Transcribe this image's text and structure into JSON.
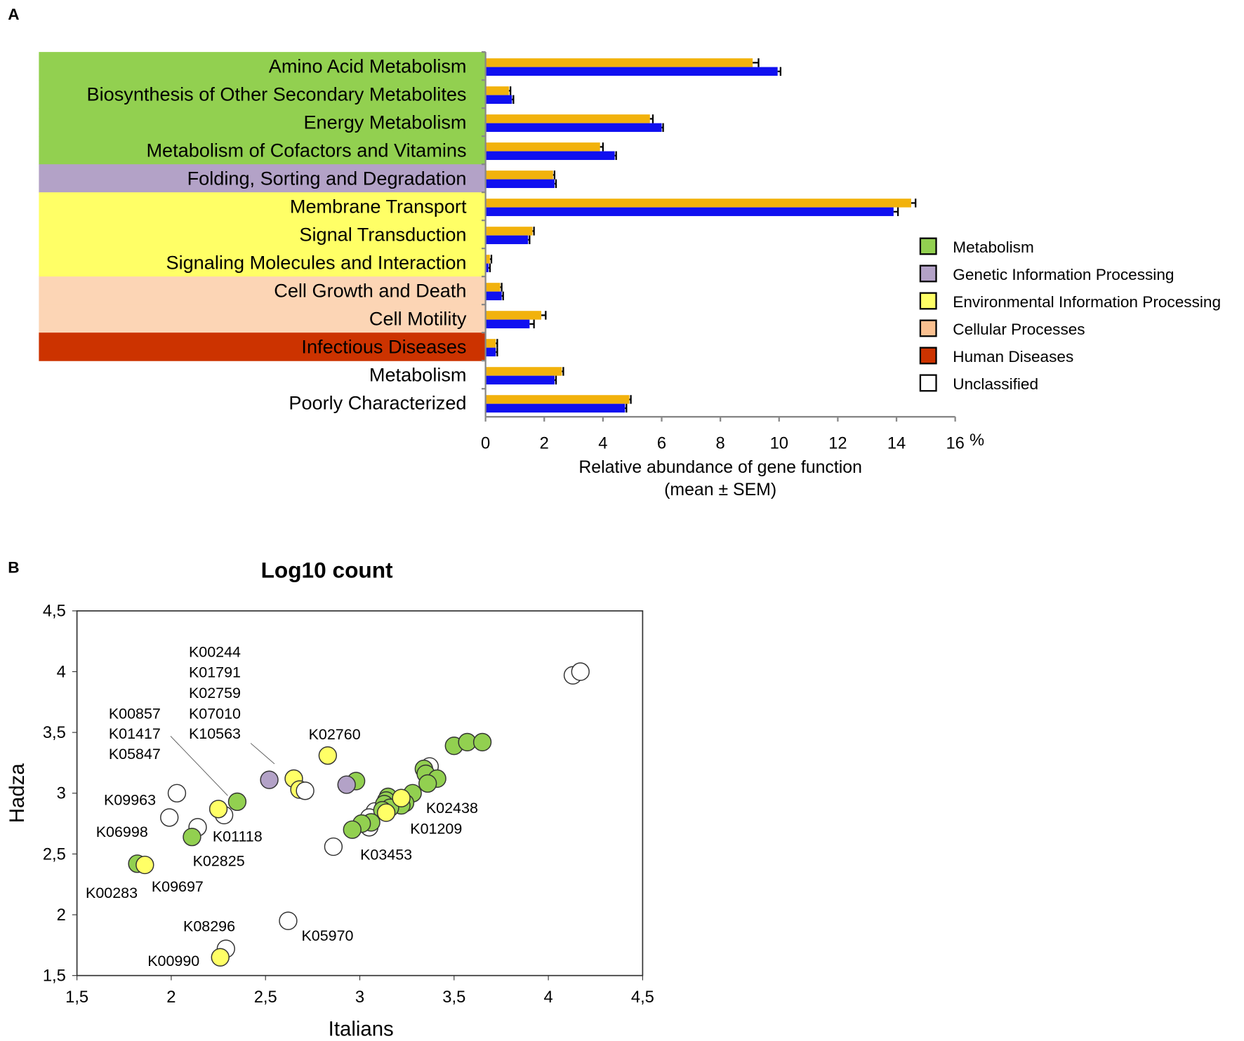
{
  "panel_labels": [
    "A",
    "B"
  ],
  "chart_data": [
    {
      "type": "bar",
      "orientation": "horizontal",
      "categories": [
        "Amino Acid Metabolism",
        "Biosynthesis of Other Secondary Metabolites",
        "Energy Metabolism",
        "Metabolism of Cofactors and Vitamins",
        "Folding, Sorting and Degradation",
        "Membrane Transport",
        "Signal Transduction",
        "Signaling Molecules and Interaction",
        "Cell Growth and Death",
        "Cell Motility",
        "Infectious Diseases",
        "Metabolism",
        "Poorly Characterized"
      ],
      "category_groups": [
        "Metabolism",
        "Metabolism",
        "Metabolism",
        "Metabolism",
        "Genetic Information Processing",
        "Environmental Information Processing",
        "Environmental Information Processing",
        "Environmental Information Processing",
        "Cellular Processes",
        "Cellular Processes",
        "Human Diseases",
        "Unclassified",
        "Unclassified"
      ],
      "series": [
        {
          "name": "series-orange",
          "color": "#f2b20c",
          "values": [
            9.1,
            0.8,
            5.6,
            3.9,
            2.3,
            14.5,
            1.6,
            0.15,
            0.5,
            1.9,
            0.35,
            2.6,
            4.9
          ],
          "errors": [
            0.2,
            0.05,
            0.1,
            0.1,
            0.05,
            0.15,
            0.05,
            0.05,
            0.05,
            0.15,
            0.05,
            0.05,
            0.05
          ]
        },
        {
          "name": "series-blue",
          "color": "#1010f0",
          "values": [
            9.95,
            0.9,
            6.0,
            4.4,
            2.35,
            13.9,
            1.45,
            0.1,
            0.55,
            1.5,
            0.35,
            2.35,
            4.75
          ],
          "errors": [
            0.1,
            0.05,
            0.05,
            0.05,
            0.05,
            0.15,
            0.05,
            0.05,
            0.05,
            0.15,
            0.05,
            0.05,
            0.05
          ]
        }
      ],
      "xlim": [
        0,
        16
      ],
      "xticks": [
        "0",
        "2",
        "4",
        "6",
        "8",
        "10",
        "12",
        "14",
        "16"
      ],
      "x_unit": "%",
      "xlabel": "Relative abundance of gene function",
      "xlabel2": "(mean ± SEM)",
      "legend": {
        "placement": "right",
        "entries": [
          {
            "label": "Metabolism",
            "color": "#92d050"
          },
          {
            "label": "Genetic Information Processing",
            "color": "#b3a2c7"
          },
          {
            "label": "Environmental Information Processing",
            "color": "#ffff66"
          },
          {
            "label": "Cellular Processes",
            "color": "#fac090"
          },
          {
            "label": "Human Diseases",
            "color": "#cc3300"
          },
          {
            "label": "Unclassified",
            "color": "#ffffff"
          }
        ]
      },
      "band_colors": {
        "Metabolism": "#92d050",
        "Genetic Information Processing": "#b3a2c7",
        "Environmental Information Processing": "#ffff66",
        "Cellular Processes": "#fcd5b5",
        "Human Diseases": "#cc3300",
        "Unclassified": "#ffffff"
      }
    },
    {
      "type": "scatter",
      "title": "Log10 count",
      "xlabel": "Italians",
      "ylabel": "Hadza",
      "xlim": [
        1.5,
        4.5
      ],
      "ylim": [
        1.5,
        4.5
      ],
      "xticks": [
        "1,5",
        "2",
        "2,5",
        "3",
        "3,5",
        "4",
        "4,5"
      ],
      "yticks": [
        "1,5",
        "2",
        "2,5",
        "3",
        "3,5",
        "4",
        "4,5"
      ],
      "points": [
        {
          "x": 4.13,
          "y": 3.97,
          "group": "Unclassified"
        },
        {
          "x": 4.17,
          "y": 4.0,
          "group": "Unclassified"
        },
        {
          "x": 3.37,
          "y": 3.22,
          "group": "Unclassified"
        },
        {
          "x": 3.5,
          "y": 3.39,
          "group": "Metabolism"
        },
        {
          "x": 3.57,
          "y": 3.42,
          "group": "Metabolism"
        },
        {
          "x": 3.65,
          "y": 3.42,
          "group": "Metabolism"
        },
        {
          "x": 3.34,
          "y": 3.2,
          "group": "Metabolism"
        },
        {
          "x": 3.35,
          "y": 3.16,
          "group": "Metabolism"
        },
        {
          "x": 3.41,
          "y": 3.12,
          "group": "Metabolism"
        },
        {
          "x": 3.36,
          "y": 3.08,
          "group": "Metabolism"
        },
        {
          "x": 3.28,
          "y": 3.0,
          "group": "Metabolism"
        },
        {
          "x": 3.24,
          "y": 2.92,
          "group": "Metabolism"
        },
        {
          "x": 3.22,
          "y": 2.9,
          "group": "Metabolism"
        },
        {
          "x": 3.08,
          "y": 2.85,
          "group": "Unclassified"
        },
        {
          "x": 3.05,
          "y": 2.8,
          "group": "Unclassified"
        },
        {
          "x": 3.05,
          "y": 2.72,
          "group": "Unclassified"
        },
        {
          "x": 3.15,
          "y": 2.97,
          "group": "Metabolism"
        },
        {
          "x": 3.14,
          "y": 2.94,
          "group": "Metabolism"
        },
        {
          "x": 3.13,
          "y": 2.91,
          "group": "Metabolism"
        },
        {
          "x": 3.16,
          "y": 2.88,
          "group": "Metabolism"
        },
        {
          "x": 3.12,
          "y": 2.86,
          "group": "Metabolism"
        },
        {
          "x": 3.14,
          "y": 2.84,
          "group": "Environmental Information Processing"
        },
        {
          "x": 3.22,
          "y": 2.96,
          "group": "Environmental Information Processing"
        },
        {
          "x": 3.06,
          "y": 2.76,
          "group": "Metabolism"
        },
        {
          "x": 3.01,
          "y": 2.75,
          "group": "Metabolism"
        },
        {
          "x": 2.96,
          "y": 2.7,
          "group": "Metabolism"
        },
        {
          "x": 2.86,
          "y": 2.56,
          "group": "Unclassified"
        },
        {
          "x": 2.83,
          "y": 3.31,
          "group": "Environmental Information Processing"
        },
        {
          "x": 2.98,
          "y": 3.1,
          "group": "Metabolism"
        },
        {
          "x": 2.93,
          "y": 3.07,
          "group": "Genetic Information Processing"
        },
        {
          "x": 2.52,
          "y": 3.11,
          "group": "Genetic Information Processing"
        },
        {
          "x": 2.65,
          "y": 3.12,
          "group": "Environmental Information Processing"
        },
        {
          "x": 2.68,
          "y": 3.03,
          "group": "Environmental Information Processing"
        },
        {
          "x": 2.71,
          "y": 3.02,
          "group": "Unclassified"
        },
        {
          "x": 2.03,
          "y": 3.0,
          "group": "Unclassified"
        },
        {
          "x": 1.99,
          "y": 2.8,
          "group": "Unclassified"
        },
        {
          "x": 2.14,
          "y": 2.72,
          "group": "Unclassified"
        },
        {
          "x": 2.35,
          "y": 2.93,
          "group": "Metabolism"
        },
        {
          "x": 2.28,
          "y": 2.82,
          "group": "Unclassified"
        },
        {
          "x": 2.25,
          "y": 2.87,
          "group": "Environmental Information Processing"
        },
        {
          "x": 2.11,
          "y": 2.64,
          "group": "Metabolism"
        },
        {
          "x": 1.82,
          "y": 2.42,
          "group": "Metabolism"
        },
        {
          "x": 1.86,
          "y": 2.41,
          "group": "Environmental Information Processing"
        },
        {
          "x": 2.62,
          "y": 1.95,
          "group": "Unclassified"
        },
        {
          "x": 2.29,
          "y": 1.72,
          "group": "Unclassified"
        },
        {
          "x": 2.26,
          "y": 1.65,
          "group": "Environmental Information Processing"
        }
      ],
      "point_colors": {
        "Metabolism": "#92d050",
        "Genetic Information Processing": "#b3a2c7",
        "Environmental Information Processing": "#ffff66",
        "Unclassified": "#ffffff"
      },
      "annotations": [
        "K00244",
        "K01791",
        "K02759",
        "K07010",
        "K10563",
        "K00857",
        "K01417",
        "K05847",
        "K02760",
        "K09963",
        "K06998",
        "K01118",
        "K02825",
        "K00283",
        "K09697",
        "K08296",
        "K00990",
        "K05970",
        "K02438",
        "K01209",
        "K03453"
      ]
    }
  ]
}
